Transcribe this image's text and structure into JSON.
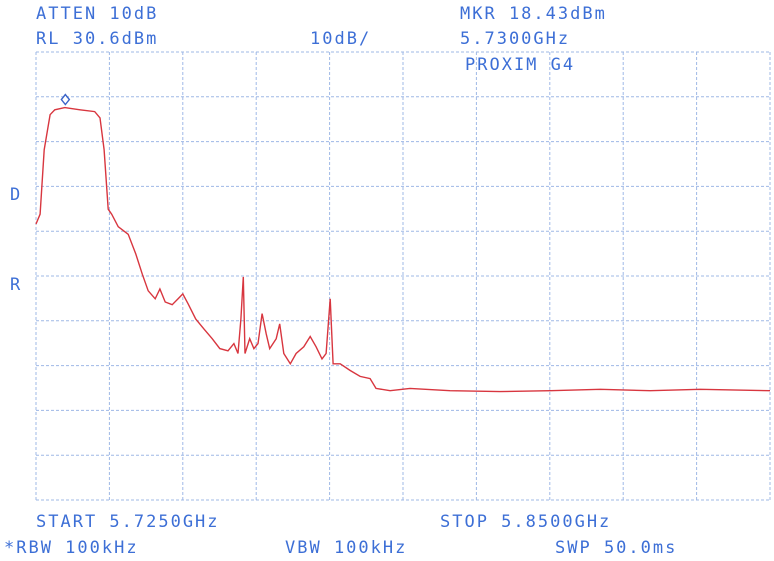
{
  "chart_data": {
    "type": "line",
    "header": {
      "atten": "ATTEN 10dB",
      "ref_level": "RL 30.6dBm",
      "scale": "10dB/",
      "marker_level": "MKR 18.43dBm",
      "marker_freq": "5.7300GHz",
      "device": "PROXIM G4"
    },
    "footer": {
      "start": "START 5.7250GHz",
      "stop": "STOP 5.8500GHz",
      "rbw": "*RBW 100kHz",
      "vbw": "VBW 100kHz",
      "sweep": "SWP 50.0ms"
    },
    "side_labels": [
      "D",
      "R"
    ],
    "x": [
      5.725,
      5.7257,
      5.7264,
      5.7274,
      5.7282,
      5.7299,
      5.7325,
      5.735,
      5.7359,
      5.7366,
      5.7373,
      5.7379,
      5.739,
      5.7407,
      5.742,
      5.7431,
      5.7441,
      5.7453,
      5.7461,
      5.747,
      5.7482,
      5.7492,
      5.75,
      5.7509,
      5.7522,
      5.7536,
      5.755,
      5.7563,
      5.7577,
      5.7587,
      5.7594,
      5.7599,
      5.7603,
      5.7606,
      5.7614,
      5.7621,
      5.7628,
      5.7635,
      5.7642,
      5.7648,
      5.7659,
      5.7665,
      5.7672,
      5.7683,
      5.7693,
      5.7706,
      5.7717,
      5.7727,
      5.7737,
      5.7744,
      5.7751,
      5.7756,
      5.7768,
      5.7785,
      5.7802,
      5.7819,
      5.7829,
      5.7853,
      5.7887,
      5.7955,
      5.804,
      5.8126,
      5.8211,
      5.8296,
      5.8381,
      5.85
    ],
    "values": [
      -7.8,
      -5.6,
      8.8,
      16.6,
      17.7,
      18.2,
      17.7,
      17.3,
      15.9,
      8.8,
      -4.5,
      -5.6,
      -8.4,
      -10.1,
      -14.5,
      -19.0,
      -22.7,
      -24.5,
      -22.3,
      -25.2,
      -25.8,
      -24.5,
      -23.4,
      -25.6,
      -29.0,
      -31.2,
      -33.4,
      -35.6,
      -36.1,
      -34.5,
      -36.7,
      -29.0,
      -19.6,
      -36.7,
      -33.4,
      -35.6,
      -34.5,
      -27.8,
      -32.3,
      -35.6,
      -33.4,
      -30.1,
      -36.7,
      -39.0,
      -36.7,
      -35.2,
      -32.9,
      -35.2,
      -37.9,
      -36.7,
      -24.5,
      -39.0,
      -39.0,
      -40.5,
      -41.8,
      -42.3,
      -44.5,
      -45.0,
      -44.5,
      -45.0,
      -45.2,
      -45.0,
      -44.7,
      -45.0,
      -44.7,
      -45.0
    ],
    "color": "#d8363f",
    "marker": {
      "x": 5.73,
      "y": 18.43,
      "color": "#3a63c8"
    },
    "xlim": [
      5.725,
      5.85
    ],
    "ylim": [
      -69.4,
      30.6
    ],
    "xticks": [
      5.725,
      5.7375,
      5.75,
      5.7625,
      5.775,
      5.7875,
      5.8,
      5.8125,
      5.825,
      5.8375,
      5.85
    ],
    "yticks": [
      -69.4,
      -59.4,
      -49.4,
      -39.4,
      -29.4,
      -19.4,
      -9.4,
      0.6,
      10.6,
      20.6,
      30.6
    ],
    "grid": true
  }
}
